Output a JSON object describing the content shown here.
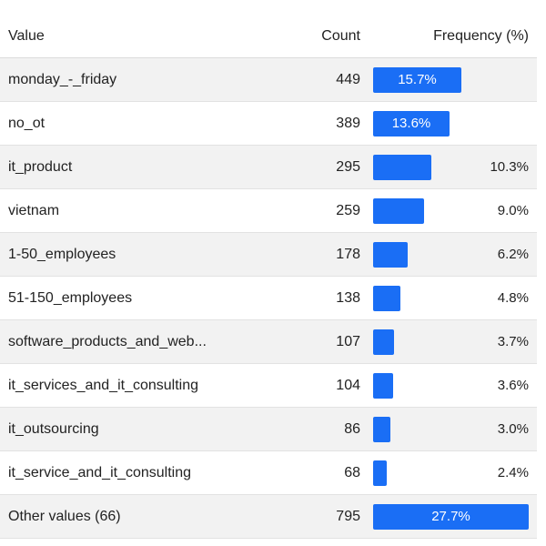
{
  "header": {
    "value": "Value",
    "count": "Count",
    "frequency": "Frequency (%)"
  },
  "accent_color": "#1a6ef5",
  "rows": [
    {
      "value": "monday_-_friday",
      "count": "449",
      "pct": "15.7%",
      "fraction": 0.157
    },
    {
      "value": "no_ot",
      "count": "389",
      "pct": "13.6%",
      "fraction": 0.136
    },
    {
      "value": "it_product",
      "count": "295",
      "pct": "10.3%",
      "fraction": 0.103
    },
    {
      "value": "vietnam",
      "count": "259",
      "pct": "9.0%",
      "fraction": 0.09
    },
    {
      "value": "1-50_employees",
      "count": "178",
      "pct": "6.2%",
      "fraction": 0.062
    },
    {
      "value": "51-150_employees",
      "count": "138",
      "pct": "4.8%",
      "fraction": 0.048
    },
    {
      "value": "software_products_and_web...",
      "count": "107",
      "pct": "3.7%",
      "fraction": 0.037
    },
    {
      "value": "it_services_and_it_consulting",
      "count": "104",
      "pct": "3.6%",
      "fraction": 0.036
    },
    {
      "value": "it_outsourcing",
      "count": "86",
      "pct": "3.0%",
      "fraction": 0.03
    },
    {
      "value": "it_service_and_it_consulting",
      "count": "68",
      "pct": "2.4%",
      "fraction": 0.024
    },
    {
      "value": "Other values (66)",
      "count": "795",
      "pct": "27.7%",
      "fraction": 0.277
    }
  ]
}
